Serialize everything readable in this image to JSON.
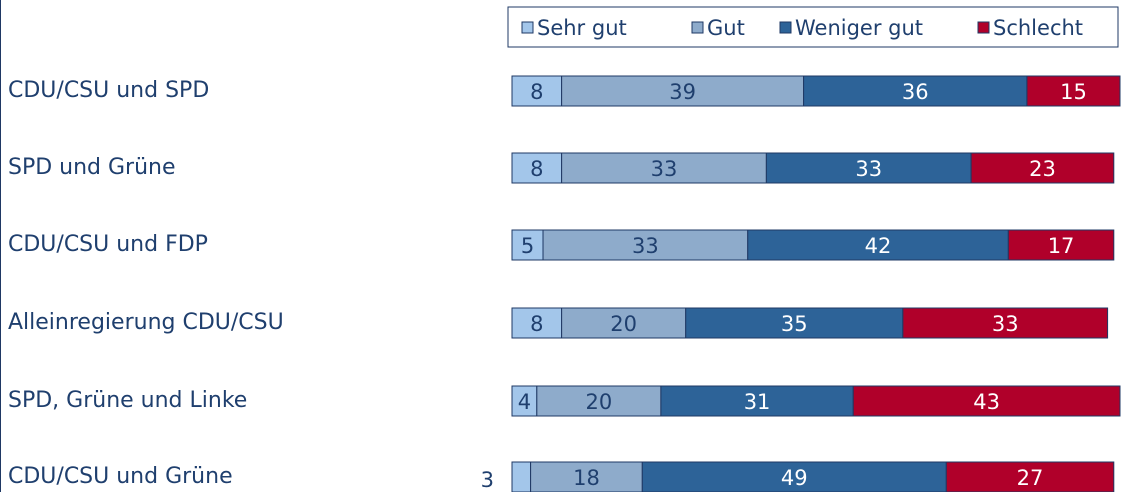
{
  "chart_data": {
    "type": "stacked-bar-horizontal",
    "categories": [
      "CDU/CSU und SPD",
      "SPD und Grüne",
      "CDU/CSU und FDP",
      "Alleinregierung CDU/CSU",
      "SPD, Grüne und Linke",
      "CDU/CSU und Grüne"
    ],
    "series": [
      {
        "name": "Sehr gut",
        "color": "#a3c6ea",
        "values": [
          8,
          8,
          5,
          8,
          4,
          3
        ]
      },
      {
        "name": "Gut",
        "color": "#8eabcb",
        "values": [
          39,
          33,
          33,
          20,
          20,
          18
        ]
      },
      {
        "name": "Weniger gut",
        "color": "#2d6398",
        "values": [
          36,
          33,
          42,
          35,
          31,
          49
        ]
      },
      {
        "name": "Schlecht",
        "color": "#b0002a",
        "values": [
          15,
          23,
          17,
          33,
          43,
          27
        ]
      }
    ],
    "legend": "top-right"
  }
}
